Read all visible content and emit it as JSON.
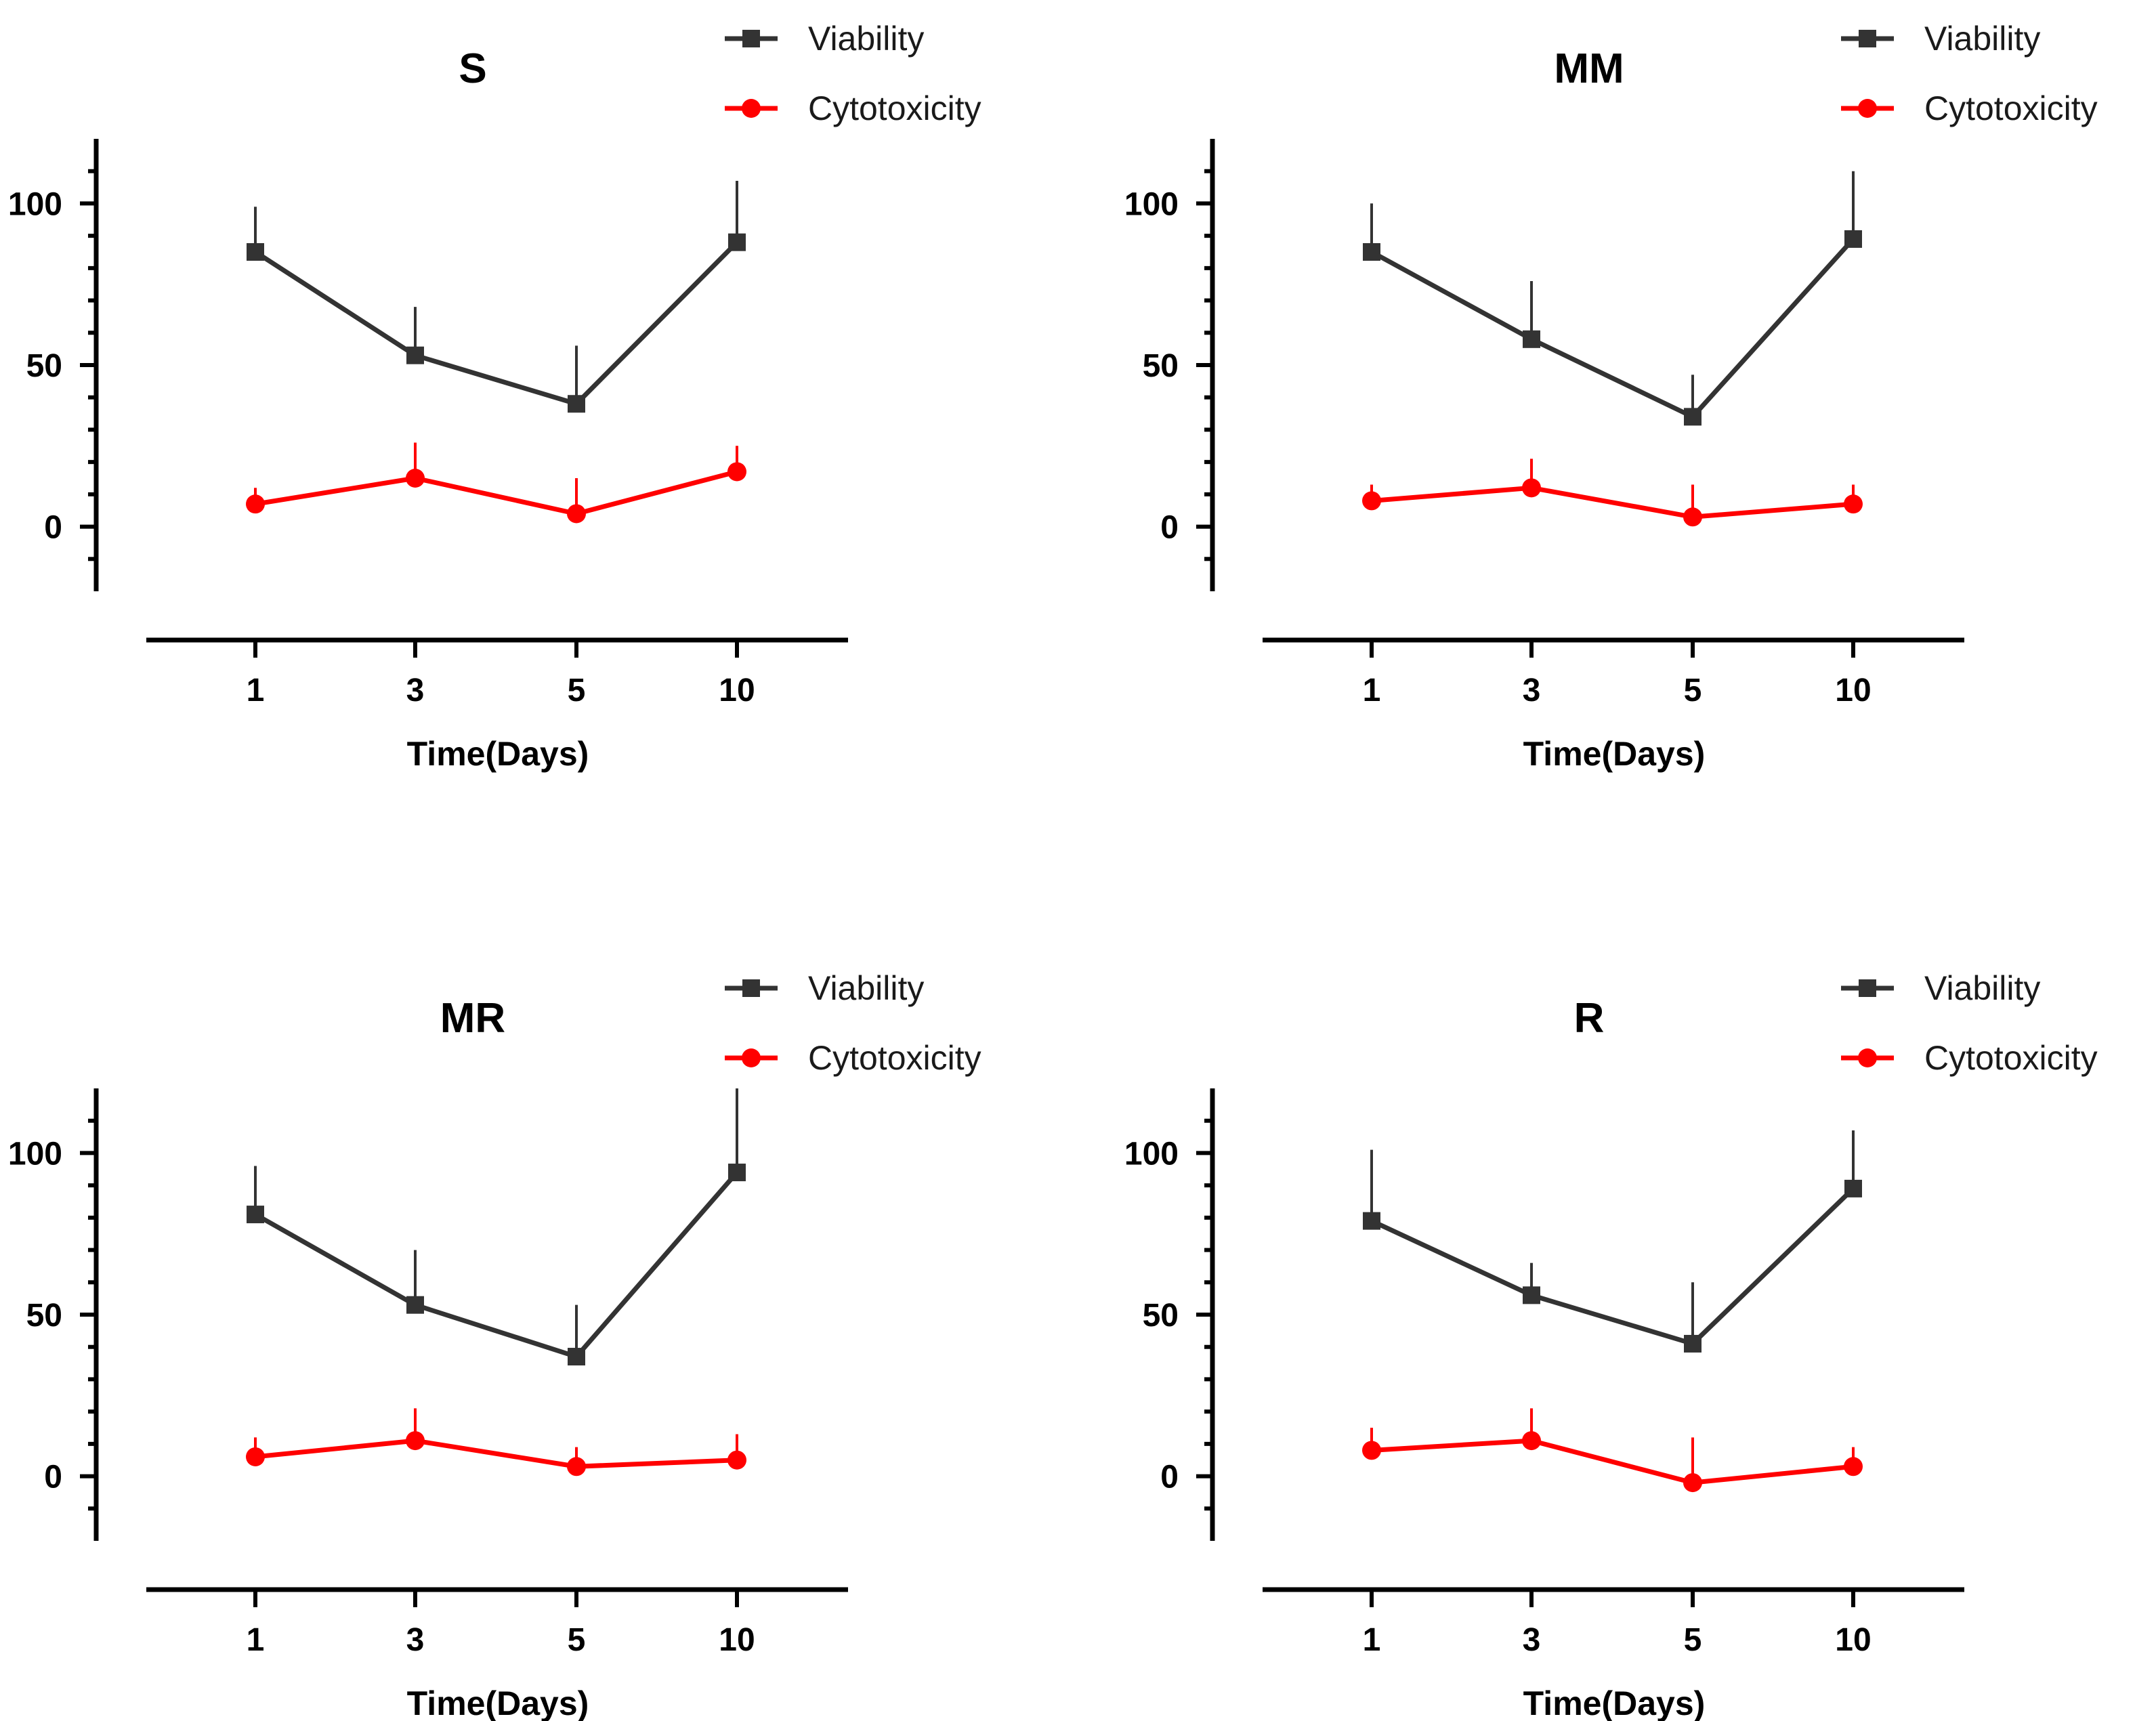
{
  "chart_data": [
    {
      "type": "line",
      "title": "S",
      "xlabel": "Time(Days)",
      "ylabel": "",
      "categories": [
        "1",
        "3",
        "5",
        "10"
      ],
      "yticks": [
        "100",
        "50",
        "0"
      ],
      "ylim": [
        -20,
        120
      ],
      "grid": false,
      "legend_placement": "top-right",
      "series": [
        {
          "name": "Viability",
          "color": "#333333",
          "marker": "square",
          "values": [
            85,
            53,
            38,
            88
          ],
          "error_upper": [
            99,
            68,
            56,
            107
          ]
        },
        {
          "name": "Cytotoxicity",
          "color": "#ff0000",
          "marker": "circle",
          "values": [
            7,
            15,
            4,
            17
          ],
          "error_upper": [
            12,
            26,
            15,
            25
          ]
        }
      ]
    },
    {
      "type": "line",
      "title": "MM",
      "xlabel": "Time(Days)",
      "ylabel": "",
      "categories": [
        "1",
        "3",
        "5",
        "10"
      ],
      "yticks": [
        "100",
        "50",
        "0"
      ],
      "ylim": [
        -20,
        120
      ],
      "grid": false,
      "legend_placement": "top-right",
      "series": [
        {
          "name": "Viability",
          "color": "#333333",
          "marker": "square",
          "values": [
            85,
            58,
            34,
            89
          ],
          "error_upper": [
            100,
            76,
            47,
            110
          ]
        },
        {
          "name": "Cytotoxicity",
          "color": "#ff0000",
          "marker": "circle",
          "values": [
            8,
            12,
            3,
            7
          ],
          "error_upper": [
            13,
            21,
            13,
            13
          ]
        }
      ]
    },
    {
      "type": "line",
      "title": "MR",
      "xlabel": "Time(Days)",
      "ylabel": "",
      "categories": [
        "1",
        "3",
        "5",
        "10"
      ],
      "yticks": [
        "100",
        "50",
        "0"
      ],
      "ylim": [
        -20,
        120
      ],
      "grid": false,
      "legend_placement": "top-right",
      "series": [
        {
          "name": "Viability",
          "color": "#333333",
          "marker": "square",
          "values": [
            81,
            53,
            37,
            94
          ],
          "error_upper": [
            96,
            70,
            53,
            120
          ]
        },
        {
          "name": "Cytotoxicity",
          "color": "#ff0000",
          "marker": "circle",
          "values": [
            6,
            11,
            3,
            5
          ],
          "error_upper": [
            12,
            21,
            9,
            13
          ]
        }
      ]
    },
    {
      "type": "line",
      "title": "R",
      "xlabel": "Time(Days)",
      "ylabel": "",
      "categories": [
        "1",
        "3",
        "5",
        "10"
      ],
      "yticks": [
        "100",
        "50",
        "0"
      ],
      "ylim": [
        -20,
        120
      ],
      "grid": false,
      "legend_placement": "top-right",
      "series": [
        {
          "name": "Viability",
          "color": "#333333",
          "marker": "square",
          "values": [
            79,
            56,
            41,
            89
          ],
          "error_upper": [
            101,
            66,
            60,
            107
          ]
        },
        {
          "name": "Cytotoxicity",
          "color": "#ff0000",
          "marker": "circle",
          "values": [
            8,
            11,
            -2,
            3
          ],
          "error_upper": [
            15,
            21,
            12,
            9
          ]
        }
      ]
    }
  ]
}
